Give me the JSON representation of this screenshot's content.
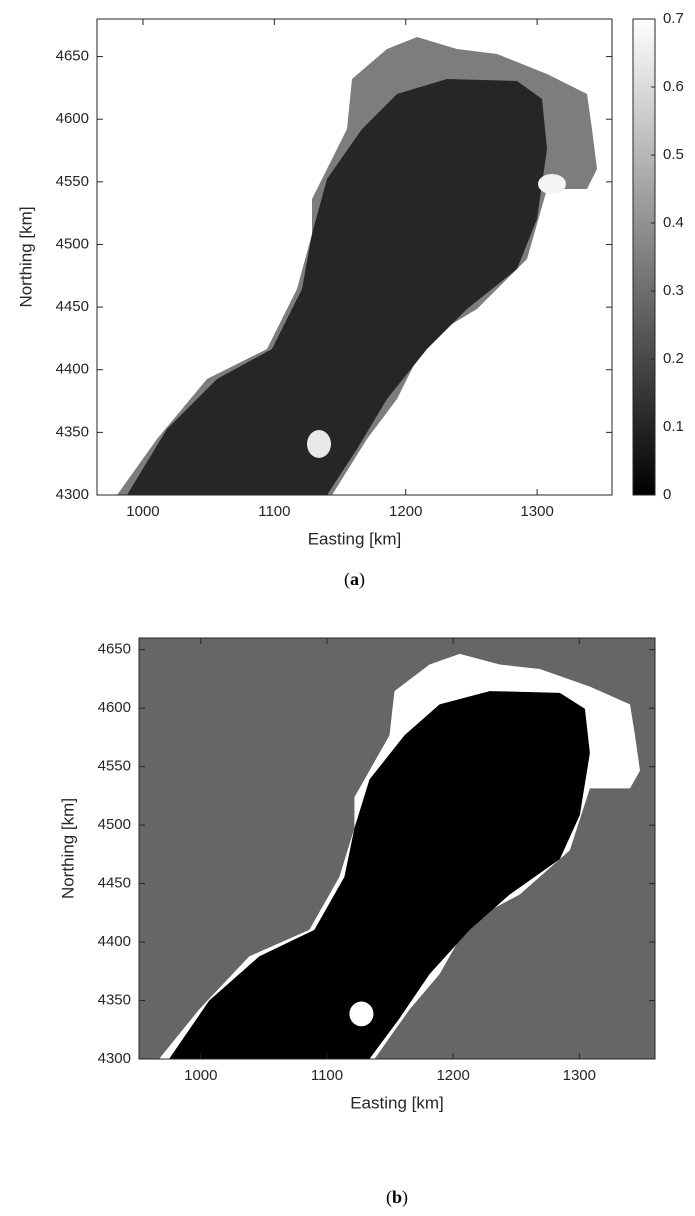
{
  "chart_data": [
    {
      "type": "image",
      "xlabel": "Easting [km]",
      "ylabel": "Northing [km]",
      "caption": "(a)",
      "xlim": [
        965,
        1357
      ],
      "xticks": [
        1000,
        1100,
        1200,
        1300
      ],
      "ylim": [
        4300,
        4680
      ],
      "yticks": [
        4300,
        4350,
        4400,
        4450,
        4500,
        4550,
        4600,
        4650
      ],
      "colormap": "gray",
      "colorbar": {
        "clim": [
          0,
          0.7
        ],
        "ticks": [
          0,
          0.1,
          0.2,
          0.3,
          0.4,
          0.5,
          0.6,
          0.7
        ]
      }
    },
    {
      "type": "image",
      "xlabel": "Easting [km]",
      "ylabel": "Northing [km]",
      "caption": "(b)",
      "xlim": [
        951,
        1360
      ],
      "xticks": [
        1000,
        1100,
        1200,
        1300
      ],
      "ylim": [
        4300,
        4660
      ],
      "yticks": [
        4300,
        4350,
        4400,
        4450,
        4500,
        4550,
        4600,
        4650
      ],
      "colormap": "gray"
    }
  ]
}
